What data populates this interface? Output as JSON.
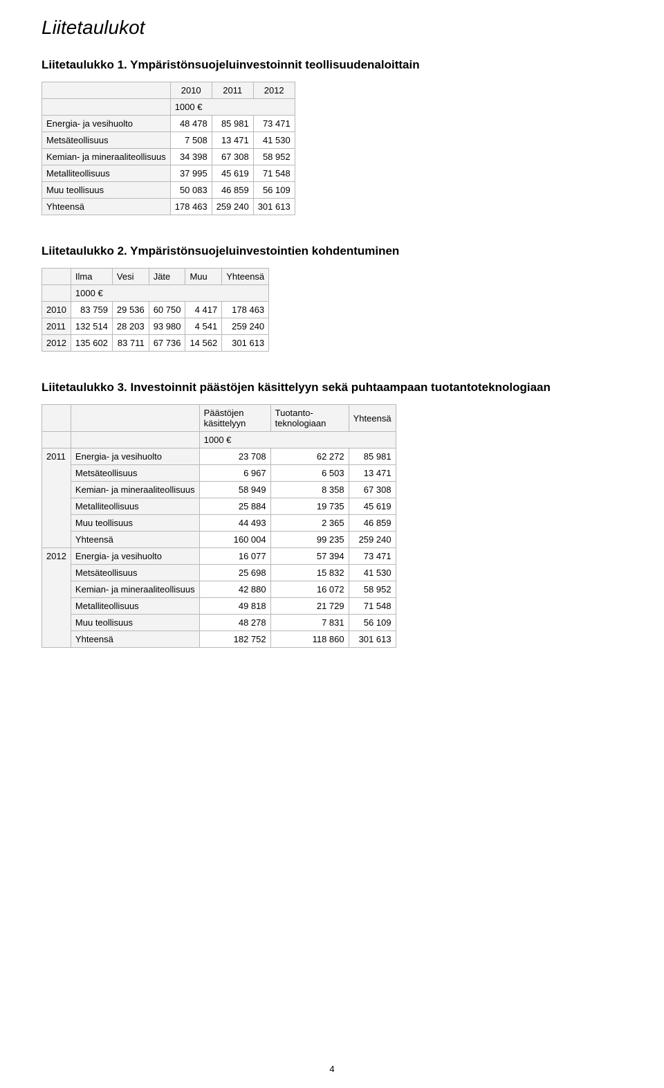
{
  "page": {
    "heading": "Liitetaulukot",
    "page_number": "4"
  },
  "t1": {
    "title": "Liitetaulukko 1. Ympäristönsuojeluinvestoinnit teollisuudenaloittain",
    "years": [
      "2010",
      "2011",
      "2012"
    ],
    "unit": "1000 €",
    "rows": [
      {
        "label": "Energia- ja vesihuolto",
        "v": [
          "48 478",
          "85 981",
          "73 471"
        ]
      },
      {
        "label": "Metsäteollisuus",
        "v": [
          "7 508",
          "13 471",
          "41 530"
        ]
      },
      {
        "label": "Kemian- ja mineraaliteollisuus",
        "v": [
          "34 398",
          "67 308",
          "58 952"
        ]
      },
      {
        "label": "Metalliteollisuus",
        "v": [
          "37 995",
          "45 619",
          "71 548"
        ]
      },
      {
        "label": "Muu teollisuus",
        "v": [
          "50 083",
          "46 859",
          "56 109"
        ]
      },
      {
        "label": "Yhteensä",
        "v": [
          "178 463",
          "259 240",
          "301 613"
        ]
      }
    ]
  },
  "t2": {
    "title": "Liitetaulukko 2. Ympäristönsuojeluinvestointien kohdentuminen",
    "cols": [
      "Ilma",
      "Vesi",
      "Jäte",
      "Muu",
      "Yhteensä"
    ],
    "unit": "1000 €",
    "rows": [
      {
        "year": "2010",
        "v": [
          "83 759",
          "29 536",
          "60 750",
          "4 417",
          "178 463"
        ]
      },
      {
        "year": "2011",
        "v": [
          "132 514",
          "28 203",
          "93 980",
          "4 541",
          "259 240"
        ]
      },
      {
        "year": "2012",
        "v": [
          "135 602",
          "83 711",
          "67 736",
          "14 562",
          "301 613"
        ]
      }
    ]
  },
  "t3": {
    "title": "Liitetaulukko 3. Investoinnit päästöjen käsittelyyn sekä puhtaampaan tuotantoteknologiaan",
    "cols": [
      "Päästöjen käsittelyyn",
      "Tuotanto-teknologiaan",
      "Yhteensä"
    ],
    "unit": "1000 €",
    "groups": [
      {
        "year": "2011",
        "rows": [
          {
            "label": "Energia- ja vesihuolto",
            "v": [
              "23 708",
              "62 272",
              "85 981"
            ]
          },
          {
            "label": "Metsäteollisuus",
            "v": [
              "6 967",
              "6 503",
              "13 471"
            ]
          },
          {
            "label": "Kemian- ja mineraaliteollisuus",
            "v": [
              "58 949",
              "8 358",
              "67 308"
            ]
          },
          {
            "label": "Metalliteollisuus",
            "v": [
              "25 884",
              "19 735",
              "45 619"
            ]
          },
          {
            "label": "Muu teollisuus",
            "v": [
              "44 493",
              "2 365",
              "46 859"
            ]
          },
          {
            "label": "Yhteensä",
            "v": [
              "160 004",
              "99 235",
              "259 240"
            ]
          }
        ]
      },
      {
        "year": "2012",
        "rows": [
          {
            "label": "Energia- ja vesihuolto",
            "v": [
              "16 077",
              "57 394",
              "73 471"
            ]
          },
          {
            "label": "Metsäteollisuus",
            "v": [
              "25 698",
              "15 832",
              "41 530"
            ]
          },
          {
            "label": "Kemian- ja mineraaliteollisuus",
            "v": [
              "42 880",
              "16 072",
              "58 952"
            ]
          },
          {
            "label": "Metalliteollisuus",
            "v": [
              "49 818",
              "21 729",
              "71 548"
            ]
          },
          {
            "label": "Muu teollisuus",
            "v": [
              "48 278",
              "7 831",
              "56 109"
            ]
          },
          {
            "label": "Yhteensä",
            "v": [
              "182 752",
              "118 860",
              "301 613"
            ]
          }
        ]
      }
    ]
  }
}
